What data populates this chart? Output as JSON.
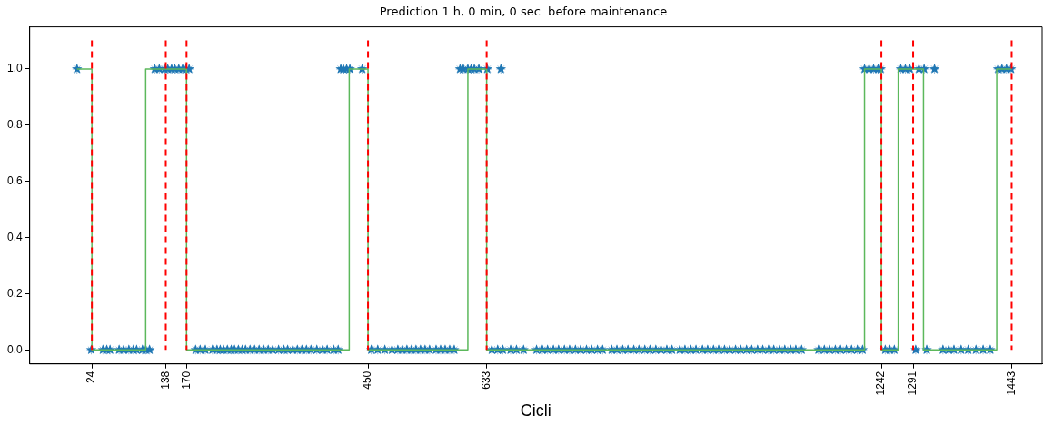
{
  "chart_data": {
    "type": "scatter",
    "title": "Prediction 1 h, 0 min, 0 sec  before maintenance",
    "xlabel": "Cicli",
    "xlim": [
      -72,
      1490
    ],
    "xticks": [
      24,
      138,
      170,
      450,
      633,
      1242,
      1291,
      1443
    ],
    "ylim": [
      -0.05,
      1.15
    ],
    "yticks": [
      {
        "value": 0,
        "label": "0.0"
      },
      {
        "value": 0.2,
        "label": "0.2"
      },
      {
        "value": 0.4,
        "label": "0.4"
      },
      {
        "value": 0.6,
        "label": "0.6"
      },
      {
        "value": 0.8,
        "label": "0.8"
      },
      {
        "value": 1,
        "label": "1.0"
      }
    ],
    "grid": false,
    "legend": false,
    "series": [
      {
        "type": "scatter",
        "marker": "star",
        "color": "#1f77b4",
        "x": [
          1,
          23,
          41,
          47,
          52,
          66,
          73,
          81,
          88,
          93,
          102,
          107,
          113,
          121,
          128,
          136,
          141,
          147,
          152,
          158,
          164,
          169,
          174,
          184,
          191,
          199,
          210,
          217,
          222,
          227,
          233,
          239,
          244,
          250,
          256,
          261,
          268,
          275,
          282,
          289,
          296,
          303,
          312,
          320,
          326,
          334,
          341,
          348,
          355,
          362,
          371,
          380,
          387,
          397,
          404,
          408,
          412,
          417,
          422,
          441,
          455,
          465,
          476,
          487,
          496,
          503,
          510,
          517,
          524,
          531,
          538,
          545,
          555,
          562,
          569,
          576,
          583,
          592,
          597,
          604,
          609,
          614,
          621,
          634,
          641,
          650,
          655,
          658,
          670,
          679,
          690,
          710,
          719,
          727,
          736,
          744,
          753,
          761,
          770,
          778,
          787,
          795,
          804,
          812,
          826,
          834,
          843,
          851,
          860,
          868,
          877,
          885,
          894,
          902,
          911,
          919,
          931,
          939,
          948,
          956,
          966,
          974,
          983,
          991,
          1000,
          1008,
          1017,
          1025,
          1034,
          1042,
          1051,
          1059,
          1068,
          1076,
          1085,
          1093,
          1102,
          1110,
          1119,
          1145,
          1154,
          1162,
          1171,
          1179,
          1188,
          1196,
          1205,
          1213,
          1216,
          1223,
          1230,
          1237,
          1241,
          1248,
          1255,
          1262,
          1272,
          1279,
          1286,
          1295,
          1300,
          1308,
          1312,
          1324,
          1337,
          1346,
          1354,
          1365,
          1376,
          1388,
          1399,
          1410,
          1422,
          1428,
          1435,
          1442
        ],
        "values": [
          1,
          0,
          0,
          0,
          0,
          0,
          0,
          0,
          0,
          0,
          0,
          0,
          0,
          1,
          1,
          1,
          1,
          1,
          1,
          1,
          1,
          1,
          1,
          0,
          0,
          0,
          0,
          0,
          0,
          0,
          0,
          0,
          0,
          0,
          0,
          0,
          0,
          0,
          0,
          0,
          0,
          0,
          0,
          0,
          0,
          0,
          0,
          0,
          0,
          0,
          0,
          0,
          0,
          0,
          0,
          1,
          1,
          1,
          1,
          1,
          0,
          0,
          0,
          0,
          0,
          0,
          0,
          0,
          0,
          0,
          0,
          0,
          0,
          0,
          0,
          0,
          0,
          1,
          1,
          1,
          1,
          1,
          1,
          1,
          0,
          0,
          1,
          0,
          0,
          0,
          0,
          0,
          0,
          0,
          0,
          0,
          0,
          0,
          0,
          0,
          0,
          0,
          0,
          0,
          0,
          0,
          0,
          0,
          0,
          0,
          0,
          0,
          0,
          0,
          0,
          0,
          0,
          0,
          0,
          0,
          0,
          0,
          0,
          0,
          0,
          0,
          0,
          0,
          0,
          0,
          0,
          0,
          0,
          0,
          0,
          0,
          0,
          0,
          0,
          0,
          0,
          0,
          0,
          0,
          0,
          0,
          0,
          0,
          1,
          1,
          1,
          1,
          1,
          0,
          0,
          0,
          1,
          1,
          1,
          0,
          1,
          1,
          0,
          1,
          0,
          0,
          0,
          0,
          0,
          0,
          0,
          0,
          1,
          1,
          1,
          1
        ]
      },
      {
        "type": "step",
        "color": "#5cb85c",
        "x": [
          1,
          24,
          107,
          170,
          421,
          450,
          604,
          633,
          1216,
          1242,
          1268,
          1307,
          1420,
          1443
        ],
        "values": [
          1,
          0,
          1,
          0,
          1,
          0,
          1,
          0,
          1,
          0,
          1,
          0,
          1,
          1
        ]
      }
    ],
    "ref_lines": [
      {
        "axis": "x",
        "value": 24,
        "color": "#ff0000",
        "line_style": "dashed"
      },
      {
        "axis": "x",
        "value": 138,
        "color": "#ff0000",
        "line_style": "dashed"
      },
      {
        "axis": "x",
        "value": 170,
        "color": "#ff0000",
        "line_style": "dashed"
      },
      {
        "axis": "x",
        "value": 450,
        "color": "#ff0000",
        "line_style": "dashed"
      },
      {
        "axis": "x",
        "value": 633,
        "color": "#ff0000",
        "line_style": "dashed"
      },
      {
        "axis": "x",
        "value": 1242,
        "color": "#ff0000",
        "line_style": "dashed"
      },
      {
        "axis": "x",
        "value": 1291,
        "color": "#ff0000",
        "line_style": "dashed"
      },
      {
        "axis": "x",
        "value": 1443,
        "color": "#ff0000",
        "line_style": "dashed"
      }
    ]
  }
}
